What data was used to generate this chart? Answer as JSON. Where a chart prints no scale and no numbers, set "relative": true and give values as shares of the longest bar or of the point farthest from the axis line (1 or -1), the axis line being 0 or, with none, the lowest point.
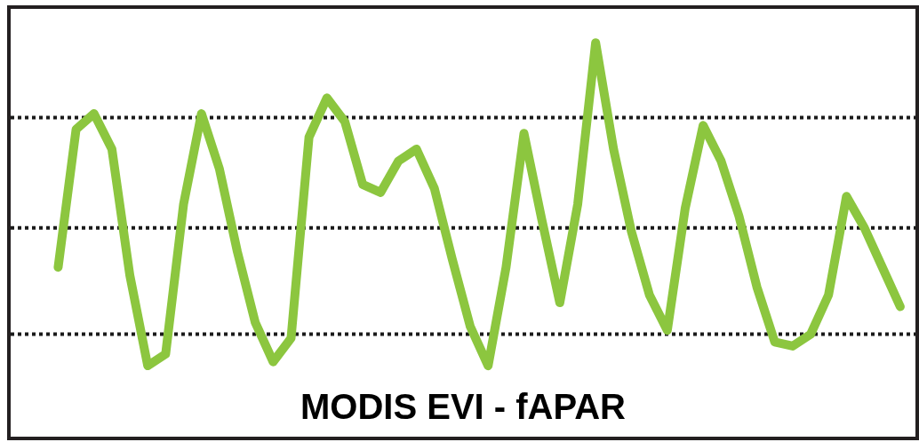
{
  "chart_data": {
    "type": "line",
    "title": "MODIS EVI - fAPAR",
    "relative": true,
    "marker": "none",
    "line_style": "solid",
    "categories": [
      null,
      null,
      null,
      null,
      null,
      null,
      null,
      null,
      null,
      null,
      null,
      null,
      null,
      null,
      null,
      null,
      null,
      null,
      null,
      null,
      null,
      null,
      null,
      null,
      null,
      null,
      null,
      null,
      null,
      null,
      null,
      null,
      null,
      null,
      null,
      null,
      null,
      null,
      null,
      null,
      null,
      null,
      null,
      null,
      null,
      null,
      null,
      null
    ],
    "series": [
      {
        "color": "#8cc63f",
        "values": [
          0.43,
          0.78,
          0.82,
          0.73,
          0.41,
          0.18,
          0.21,
          0.59,
          0.82,
          0.68,
          0.47,
          0.29,
          0.19,
          0.25,
          0.76,
          0.86,
          0.8,
          0.64,
          0.62,
          0.7,
          0.73,
          0.63,
          0.45,
          0.28,
          0.18,
          0.43,
          0.77,
          0.55,
          0.34,
          0.59,
          1.0,
          0.73,
          0.52,
          0.36,
          0.27,
          0.58,
          0.79,
          0.7,
          0.56,
          0.38,
          0.24,
          0.23,
          0.26,
          0.36,
          0.61,
          0.53,
          0.43,
          0.33
        ]
      }
    ],
    "ref_lines": [
      {
        "axis": "y",
        "value": 0.81,
        "color": "#1a1a1a",
        "line_style": "dotted"
      },
      {
        "axis": "y",
        "value": 0.53,
        "color": "#1a1a1a",
        "line_style": "dotted"
      },
      {
        "axis": "y",
        "value": 0.26,
        "color": "#1a1a1a",
        "line_style": "dotted"
      }
    ]
  }
}
